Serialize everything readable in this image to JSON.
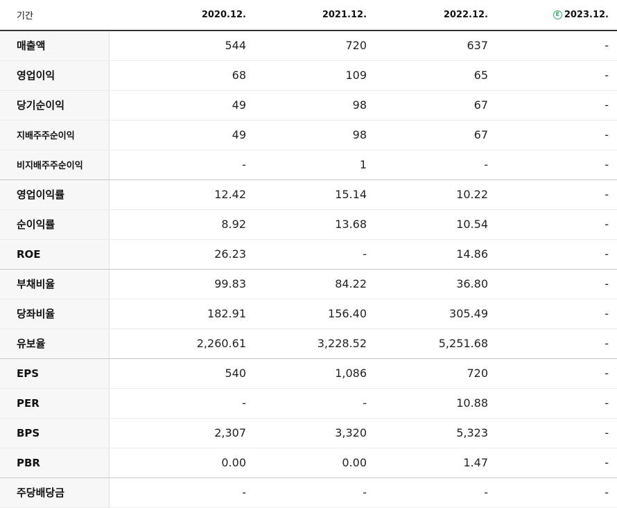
{
  "header": {
    "label": "기간",
    "periods": [
      "2020.12.",
      "2021.12.",
      "2022.12.",
      "2023.12."
    ],
    "estimate_icon": "E"
  },
  "rows": [
    {
      "label": "매출액",
      "values": [
        "544",
        "720",
        "637",
        "-"
      ]
    },
    {
      "label": "영업이익",
      "values": [
        "68",
        "109",
        "65",
        "-"
      ]
    },
    {
      "label": "당기순이익",
      "values": [
        "49",
        "98",
        "67",
        "-"
      ]
    },
    {
      "label": "지배주주순이익",
      "values": [
        "49",
        "98",
        "67",
        "-"
      ]
    },
    {
      "label": "비지배주주순이익",
      "values": [
        "-",
        "1",
        "-",
        "-"
      ]
    },
    {
      "label": "영업이익률",
      "values": [
        "12.42",
        "15.14",
        "10.22",
        "-"
      ]
    },
    {
      "label": "순이익률",
      "values": [
        "8.92",
        "13.68",
        "10.54",
        "-"
      ]
    },
    {
      "label": "ROE",
      "values": [
        "26.23",
        "-",
        "14.86",
        "-"
      ]
    },
    {
      "label": "부채비율",
      "values": [
        "99.83",
        "84.22",
        "36.80",
        "-"
      ]
    },
    {
      "label": "당좌비율",
      "values": [
        "182.91",
        "156.40",
        "305.49",
        "-"
      ]
    },
    {
      "label": "유보율",
      "values": [
        "2,260.61",
        "3,228.52",
        "5,251.68",
        "-"
      ]
    },
    {
      "label": "EPS",
      "values": [
        "540",
        "1,086",
        "720",
        "-"
      ]
    },
    {
      "label": "PER",
      "values": [
        "-",
        "-",
        "10.88",
        "-"
      ]
    },
    {
      "label": "BPS",
      "values": [
        "2,307",
        "3,320",
        "5,323",
        "-"
      ]
    },
    {
      "label": "PBR",
      "values": [
        "0.00",
        "0.00",
        "1.47",
        "-"
      ]
    },
    {
      "label": "주당배당금",
      "values": [
        "-",
        "-",
        "-",
        "-"
      ]
    }
  ],
  "colors": {
    "estimate": "#2aaa5a",
    "label_bg": "#f7f7f7"
  }
}
